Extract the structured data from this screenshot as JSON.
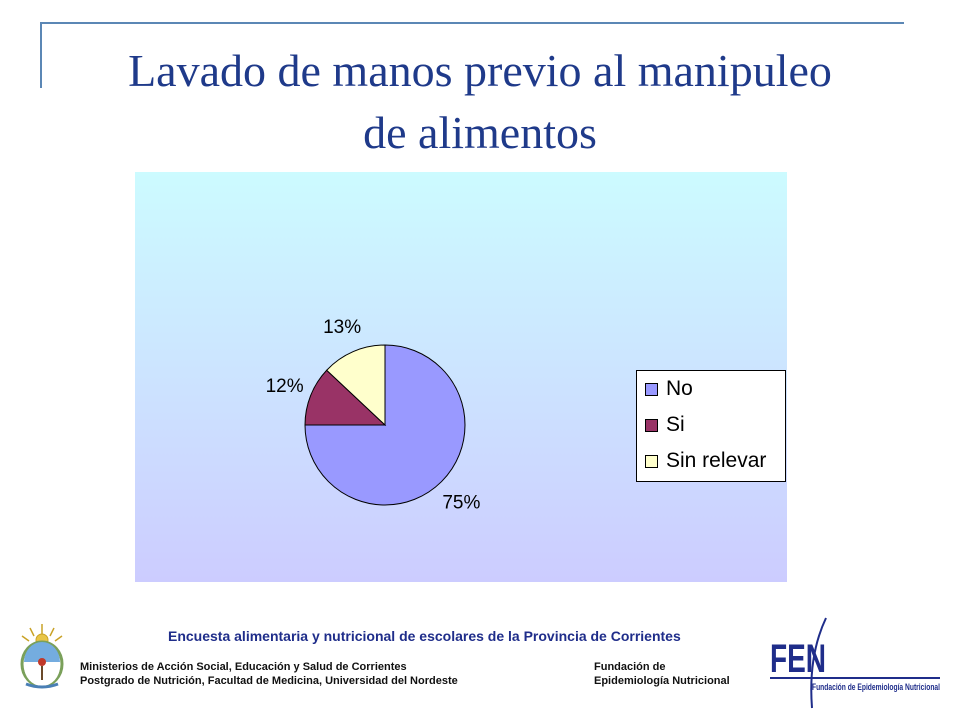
{
  "slide": {
    "title_line1": "Lavado de manos previo al manipuleo",
    "title_line2": "de alimentos"
  },
  "chart_data": {
    "type": "pie",
    "categories": [
      "No",
      "Si",
      "Sin relevar"
    ],
    "values": [
      75,
      12,
      13
    ],
    "labels": [
      "75%",
      "12%",
      "13%"
    ],
    "colors": [
      "#9999ff",
      "#993366",
      "#ffffcc"
    ],
    "legend_position": "right"
  },
  "footer": {
    "survey": "Encuesta alimentaria y  nutricional de escolares de la Provincia de Corrientes",
    "ministries_line1": "Ministerios de Acción Social, Educación y Salud de Corrientes",
    "ministries_line2": "Postgrado de Nutrición, Facultad de Medicina, Universidad del Nordeste",
    "fen_line1": "Fundación de",
    "fen_line2": "Epidemiología Nutricional",
    "fen_logo_text": "FEN",
    "fen_logo_subtext": "Fundación de Epidemiología Nutricional"
  }
}
